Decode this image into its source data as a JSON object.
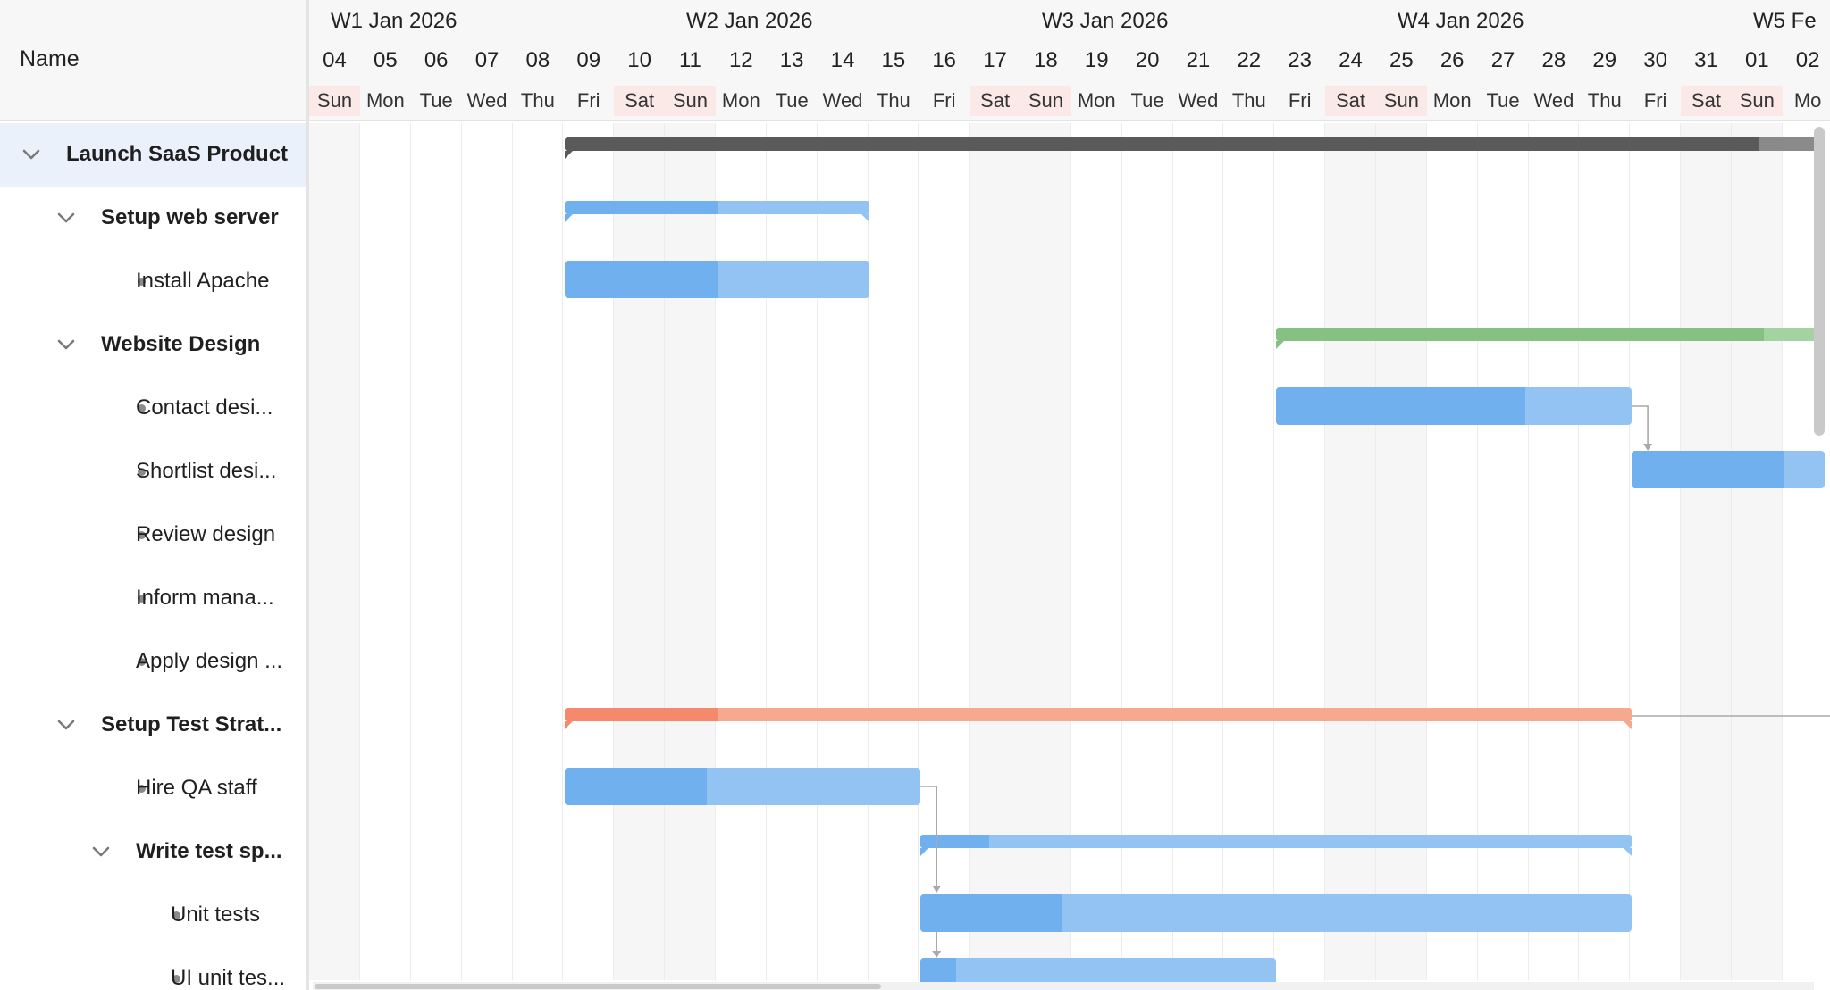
{
  "header": {
    "name_column": "Name"
  },
  "weeks": [
    "W1 Jan 2026",
    "W2 Jan 2026",
    "W3 Jan 2026",
    "W4 Jan 2026",
    "W5 Fe"
  ],
  "days": [
    {
      "num": "04",
      "name": "Sun",
      "weekend": true
    },
    {
      "num": "05",
      "name": "Mon",
      "weekend": false
    },
    {
      "num": "06",
      "name": "Tue",
      "weekend": false
    },
    {
      "num": "07",
      "name": "Wed",
      "weekend": false
    },
    {
      "num": "08",
      "name": "Thu",
      "weekend": false
    },
    {
      "num": "09",
      "name": "Fri",
      "weekend": false
    },
    {
      "num": "10",
      "name": "Sat",
      "weekend": true
    },
    {
      "num": "11",
      "name": "Sun",
      "weekend": true
    },
    {
      "num": "12",
      "name": "Mon",
      "weekend": false
    },
    {
      "num": "13",
      "name": "Tue",
      "weekend": false
    },
    {
      "num": "14",
      "name": "Wed",
      "weekend": false
    },
    {
      "num": "15",
      "name": "Thu",
      "weekend": false
    },
    {
      "num": "16",
      "name": "Fri",
      "weekend": false
    },
    {
      "num": "17",
      "name": "Sat",
      "weekend": true
    },
    {
      "num": "18",
      "name": "Sun",
      "weekend": true
    },
    {
      "num": "19",
      "name": "Mon",
      "weekend": false
    },
    {
      "num": "20",
      "name": "Tue",
      "weekend": false
    },
    {
      "num": "21",
      "name": "Wed",
      "weekend": false
    },
    {
      "num": "22",
      "name": "Thu",
      "weekend": false
    },
    {
      "num": "23",
      "name": "Fri",
      "weekend": false
    },
    {
      "num": "24",
      "name": "Sat",
      "weekend": true
    },
    {
      "num": "25",
      "name": "Sun",
      "weekend": true
    },
    {
      "num": "26",
      "name": "Mon",
      "weekend": false
    },
    {
      "num": "27",
      "name": "Tue",
      "weekend": false
    },
    {
      "num": "28",
      "name": "Wed",
      "weekend": false
    },
    {
      "num": "29",
      "name": "Thu",
      "weekend": false
    },
    {
      "num": "30",
      "name": "Fri",
      "weekend": false
    },
    {
      "num": "31",
      "name": "Sat",
      "weekend": true
    },
    {
      "num": "01",
      "name": "Sun",
      "weekend": true
    },
    {
      "num": "02",
      "name": "Mo",
      "weekend": false
    }
  ],
  "tasks": [
    {
      "label": "Launch SaaS Product",
      "level": 0,
      "type": "parent",
      "selected": true
    },
    {
      "label": "Setup web server",
      "level": 1,
      "type": "parent"
    },
    {
      "label": "Install Apache",
      "level": 2,
      "type": "leaf"
    },
    {
      "label": "Website Design",
      "level": 1,
      "type": "parent"
    },
    {
      "label": "Contact desi...",
      "level": 2,
      "type": "leaf"
    },
    {
      "label": "Shortlist desi...",
      "level": 2,
      "type": "leaf"
    },
    {
      "label": "Review design",
      "level": 2,
      "type": "leaf"
    },
    {
      "label": "Inform mana...",
      "level": 2,
      "type": "leaf"
    },
    {
      "label": "Apply design ...",
      "level": 2,
      "type": "leaf"
    },
    {
      "label": "Setup Test Strat...",
      "level": 1,
      "type": "parent"
    },
    {
      "label": "Hire QA staff",
      "level": 2,
      "type": "leaf"
    },
    {
      "label": "Write test sp...",
      "level": 2,
      "type": "parent"
    },
    {
      "label": "Unit tests",
      "level": 3,
      "type": "leaf"
    },
    {
      "label": "UI unit tes...",
      "level": 3,
      "type": "leaf"
    }
  ],
  "colors": {
    "project": "#5a5a5a",
    "project_light": "#8a8a8a",
    "blue": "#92c3f3",
    "blue_done": "#70b0ee",
    "green": "#a3d3a0",
    "green_done": "#86c183",
    "orange": "#f7a98f",
    "orange_done": "#f48a6b",
    "dependency": "#a9a9a9"
  }
}
